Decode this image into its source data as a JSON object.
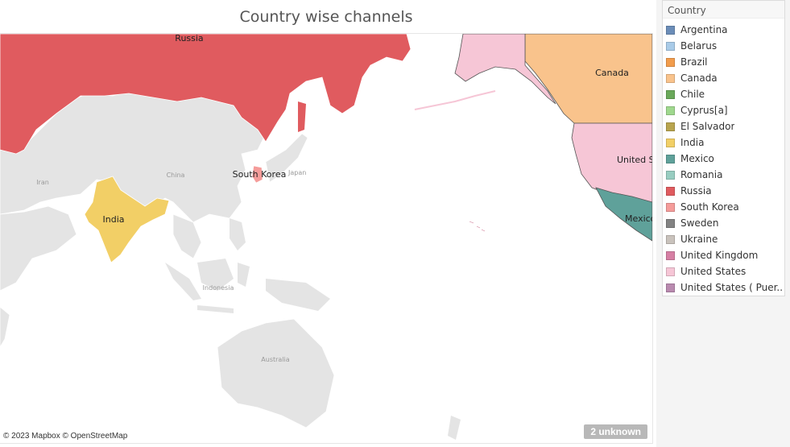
{
  "title": "Country wise channels",
  "legend": {
    "title": "Country",
    "items": [
      {
        "label": "Argentina",
        "color": "#6b8db8"
      },
      {
        "label": "Belarus",
        "color": "#a9cbe8"
      },
      {
        "label": "Brazil",
        "color": "#f29c4c"
      },
      {
        "label": "Canada",
        "color": "#f9c38c"
      },
      {
        "label": "Chile",
        "color": "#6aa85a"
      },
      {
        "label": "Cyprus[a]",
        "color": "#9fd88e"
      },
      {
        "label": "El Salvador",
        "color": "#b8a44e"
      },
      {
        "label": "India",
        "color": "#f2cf66"
      },
      {
        "label": "Mexico",
        "color": "#5fa19a"
      },
      {
        "label": "Romania",
        "color": "#98cdc1"
      },
      {
        "label": "Russia",
        "color": "#e05b5f"
      },
      {
        "label": "South Korea",
        "color": "#f59c9a"
      },
      {
        "label": "Sweden",
        "color": "#838383"
      },
      {
        "label": "Ukraine",
        "color": "#c9c2bc"
      },
      {
        "label": "United Kingdom",
        "color": "#d67fa4"
      },
      {
        "label": "United States",
        "color": "#f6c6d6"
      },
      {
        "label": "United States ( Puer..",
        "color": "#b98aaf"
      }
    ]
  },
  "map": {
    "labels": {
      "russia": "Russia",
      "canada": "Canada",
      "india": "India",
      "south_korea": "South Korea",
      "united_states": "United S",
      "mexico": "Mexico",
      "china": "China",
      "iran": "Iran",
      "indonesia": "Indonesia",
      "australia": "Australia",
      "japan": "Japan"
    },
    "colors": {
      "land": "#e4e4e4",
      "border": "#ffffff",
      "russia": "#e05b5f",
      "canada": "#f9c38c",
      "united_states": "#f6c6d6",
      "mexico": "#5fa19a",
      "india": "#f2cf66",
      "south_korea": "#f59c9a"
    }
  },
  "attribution": "© 2023 Mapbox © OpenStreetMap",
  "unknown_badge": "2 unknown"
}
